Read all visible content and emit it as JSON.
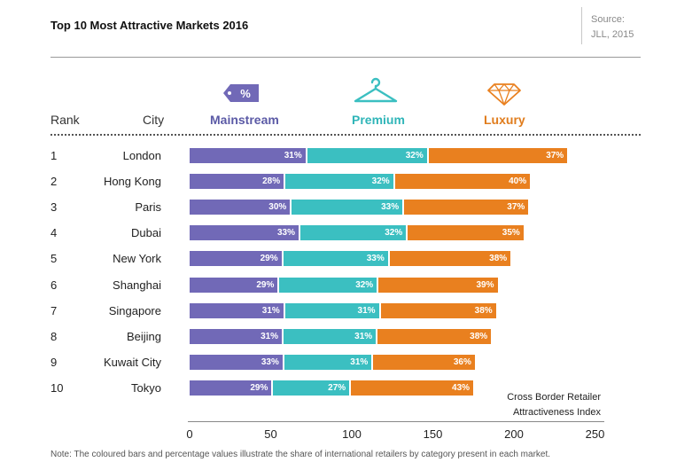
{
  "header": {
    "title": "Top 10 Most Attractive Markets 2016",
    "source_label": "Source:",
    "source_value": "JLL, 2015"
  },
  "columns": {
    "rank": "Rank",
    "city": "City",
    "mainstream": "Mainstream",
    "premium": "Premium",
    "luxury": "Luxury"
  },
  "icons": {
    "mainstream": "price-tag-percent-icon",
    "mainstream_symbol": "%",
    "premium": "clothes-hanger-icon",
    "luxury": "diamond-icon"
  },
  "colors": {
    "mainstream": "#7169b7",
    "premium": "#3bbfc1",
    "luxury": "#e9801f"
  },
  "index_label_line1": "Cross Border Retailer",
  "index_label_line2": "Attractiveness Index",
  "note": "Note: The coloured bars and percentage values illustrate the share of international retailers by category present in each market.",
  "chart_data": {
    "type": "bar",
    "orientation": "horizontal",
    "stacked": true,
    "title": "Top 10 Most Attractive Markets 2016",
    "xlabel": "Cross Border Retailer Attractiveness Index",
    "xlim": [
      0,
      250
    ],
    "xticks": [
      0,
      50,
      100,
      150,
      200,
      250
    ],
    "legend": "top",
    "rows": [
      {
        "rank": 1,
        "city": "London",
        "total": 234,
        "shares": [
          31,
          32,
          37
        ],
        "labels": [
          "31%",
          "32%",
          "37%"
        ]
      },
      {
        "rank": 2,
        "city": "Hong Kong",
        "total": 211,
        "shares": [
          28,
          32,
          40
        ],
        "labels": [
          "28%",
          "32%",
          "40%"
        ]
      },
      {
        "rank": 3,
        "city": "Paris",
        "total": 210,
        "shares": [
          30,
          33,
          37
        ],
        "labels": [
          "30%",
          "33%",
          "37%"
        ]
      },
      {
        "rank": 4,
        "city": "Dubai",
        "total": 207,
        "shares": [
          33,
          32,
          35
        ],
        "labels": [
          "33%",
          "32%",
          "35%"
        ]
      },
      {
        "rank": 5,
        "city": "New York",
        "total": 199,
        "shares": [
          29,
          33,
          38
        ],
        "labels": [
          "29%",
          "33%",
          "38%"
        ]
      },
      {
        "rank": 6,
        "city": "Shanghai",
        "total": 191,
        "shares": [
          29,
          32,
          39
        ],
        "labels": [
          "29%",
          "32%",
          "39%"
        ]
      },
      {
        "rank": 7,
        "city": "Singapore",
        "total": 190,
        "shares": [
          31,
          31,
          38
        ],
        "labels": [
          "31%",
          "31%",
          "38%"
        ]
      },
      {
        "rank": 8,
        "city": "Beijing",
        "total": 187,
        "shares": [
          31,
          31,
          38
        ],
        "labels": [
          "31%",
          "31%",
          "38%"
        ]
      },
      {
        "rank": 9,
        "city": "Kuwait City",
        "total": 177,
        "shares": [
          33,
          31,
          36
        ],
        "labels": [
          "33%",
          "31%",
          "36%"
        ]
      },
      {
        "rank": 10,
        "city": "Tokyo",
        "total": 176,
        "shares": [
          29,
          27,
          43
        ],
        "labels": [
          "29%",
          "27%",
          "43%"
        ]
      }
    ],
    "series": [
      {
        "name": "Mainstream"
      },
      {
        "name": "Premium"
      },
      {
        "name": "Luxury"
      }
    ]
  }
}
